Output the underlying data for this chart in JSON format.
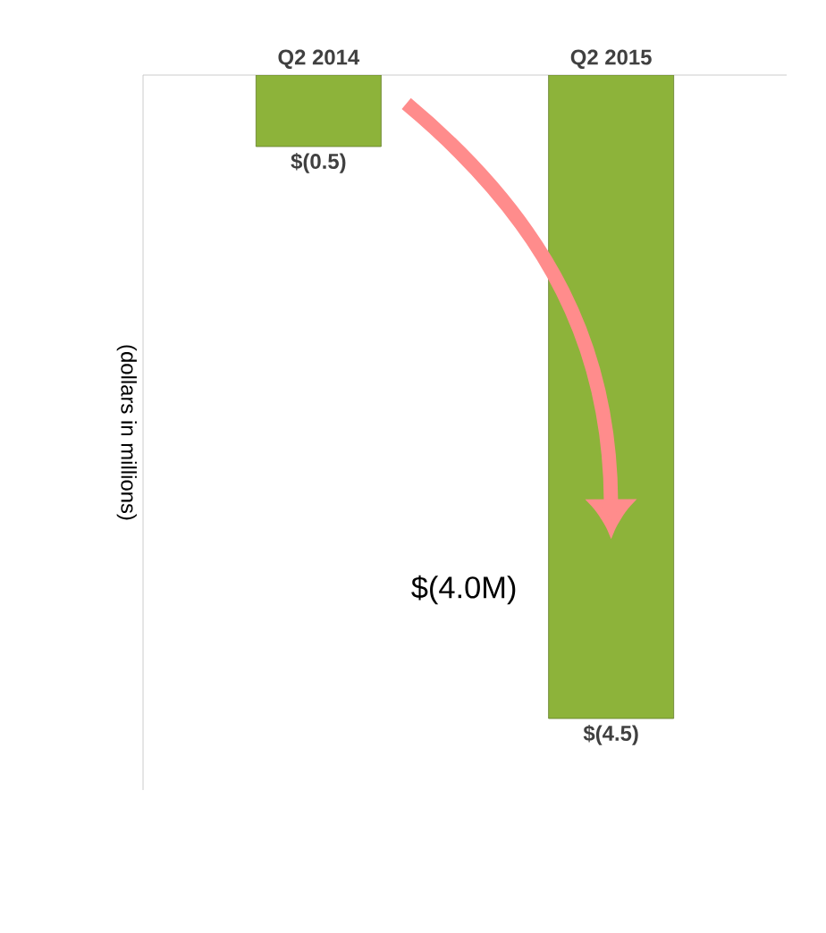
{
  "chart_data": {
    "type": "bar",
    "categories": [
      "Q2 2014",
      "Q2 2015"
    ],
    "values": [
      -0.5,
      -4.5
    ],
    "value_labels": [
      "$(0.5)",
      "$(4.5)"
    ],
    "color": "#8db33a",
    "ylim": [
      -5,
      0
    ],
    "tick_labels": "x",
    "ylabel": "(dollars in millions)",
    "annotations": [
      "$(4.0M)"
    ]
  }
}
